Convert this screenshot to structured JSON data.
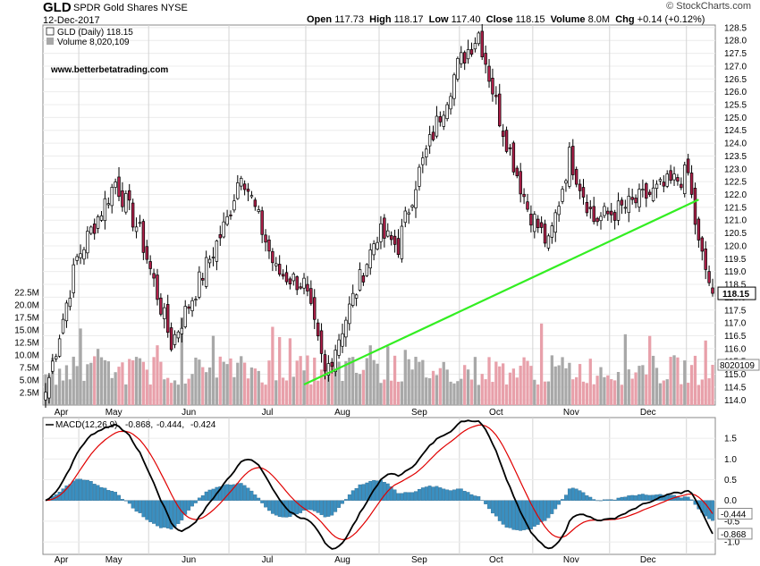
{
  "header": {
    "symbol": "GLD",
    "name": "SPDR Gold Shares",
    "exchange": "NYSE",
    "date": "12-Dec-2017",
    "brand": "© StockCharts.com",
    "quote": {
      "open_label": "Open",
      "open": "117.73",
      "high_label": "High",
      "high": "118.17",
      "low_label": "Low",
      "low": "117.40",
      "close_label": "Close",
      "close": "118.15",
      "volume_label": "Volume",
      "volume": "8.0M",
      "chg_label": "Chg",
      "chg": "+0.14 (+0.12%)"
    }
  },
  "price_panel": {
    "legend_price": "GLD (Daily) 118.15",
    "legend_volume": "Volume 8,020,109",
    "watermark": "www.betterbetatrading.com",
    "last_price_tag": "118.15",
    "last_volume_tag": "8020109",
    "ylim": [
      113.8,
      128.6
    ],
    "y_ticks": [
      "114.0",
      "114.5",
      "115.0",
      "115.5",
      "116.0",
      "116.5",
      "117.0",
      "117.5",
      "118.0",
      "118.5",
      "119.0",
      "119.5",
      "120.0",
      "120.5",
      "121.0",
      "121.5",
      "122.0",
      "122.5",
      "123.0",
      "123.5",
      "124.0",
      "124.5",
      "125.0",
      "125.5",
      "126.0",
      "126.5",
      "127.0",
      "127.5",
      "128.0",
      "128.5"
    ],
    "volume_ticks": [
      "2.5M",
      "5.0M",
      "7.5M",
      "10.0M",
      "12.5M",
      "15.0M",
      "17.5M",
      "20.0M",
      "22.5M"
    ],
    "trendline": {
      "from": [
        "2017-06-30",
        114.6
      ],
      "to": [
        "2017-12-06",
        121.8
      ]
    }
  },
  "macd_panel": {
    "legend_label": "MACD(12,26,9)",
    "macd_value": "-0.868",
    "signal_value": "-0.444",
    "hist_value": "-0.424",
    "y_ticks": [
      "1.5",
      "1.0",
      "0.5",
      "0.0",
      "-0.5",
      "-1.0"
    ],
    "ylim": [
      -1.3,
      2.0
    ],
    "macd_tag": "-0.868",
    "signal_tag": "-0.444"
  },
  "x_axis": {
    "months": [
      "Apr",
      "May",
      "Jun",
      "Jul",
      "Aug",
      "Sep",
      "Oct",
      "Nov",
      "Dec"
    ]
  },
  "colors": {
    "up": "#ffffff",
    "down": "#b0204a",
    "vol_up": "#a8a8a8",
    "vol_down": "#e8a0aa",
    "macd": "#000000",
    "signal": "#e00000",
    "hist": "#3a8fc0",
    "trend": "#33ee22"
  },
  "chart_data": {
    "type": "candlestick",
    "series": [
      {
        "name": "GLD (Daily)",
        "anchors": [
          [
            "2017-03-20",
            114.3
          ],
          [
            "2017-03-31",
            119.5
          ],
          [
            "2017-04-17",
            122.5
          ],
          [
            "2017-04-26",
            120.5
          ],
          [
            "2017-05-09",
            116.2
          ],
          [
            "2017-05-31",
            121.0
          ],
          [
            "2017-06-06",
            123.0
          ],
          [
            "2017-06-20",
            119.0
          ],
          [
            "2017-06-30",
            118.5
          ],
          [
            "2017-07-10",
            115.0
          ],
          [
            "2017-07-31",
            120.5
          ],
          [
            "2017-08-08",
            120.0
          ],
          [
            "2017-08-15",
            122.5
          ],
          [
            "2017-08-31",
            127.0
          ],
          [
            "2017-09-08",
            128.3
          ],
          [
            "2017-09-18",
            125.0
          ],
          [
            "2017-09-28",
            121.5
          ],
          [
            "2017-10-06",
            120.0
          ],
          [
            "2017-10-16",
            123.5
          ],
          [
            "2017-10-25",
            121.0
          ],
          [
            "2017-11-07",
            121.5
          ],
          [
            "2017-11-27",
            122.5
          ],
          [
            "2017-12-01",
            122.8
          ],
          [
            "2017-12-06",
            120.0
          ],
          [
            "2017-12-12",
            118.15
          ]
        ]
      },
      {
        "name": "Volume",
        "last": 8020109
      },
      {
        "name": "MACD(12,26,9)",
        "last": -0.868
      },
      {
        "name": "Signal",
        "last": -0.444
      },
      {
        "name": "Histogram",
        "last": -0.424
      }
    ]
  }
}
